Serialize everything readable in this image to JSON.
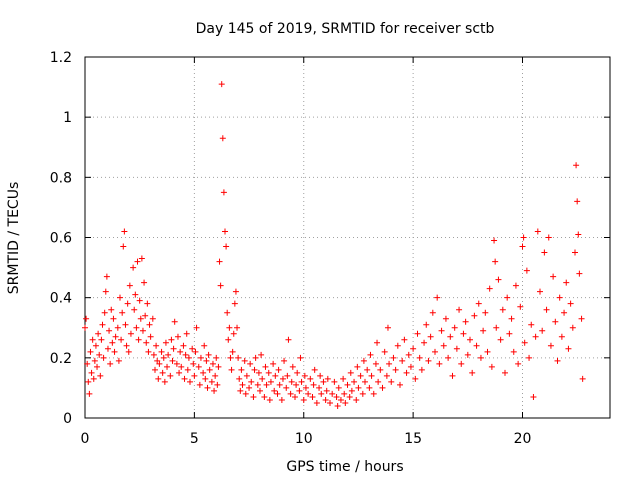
{
  "chart_data": {
    "type": "scatter",
    "title": "Day 145 of 2019, SRMTID for receiver sctb",
    "xlabel": "GPS time / hours",
    "ylabel": "SRMTID / TECUs",
    "xlim": [
      0,
      24
    ],
    "ylim": [
      0,
      1.2
    ],
    "xticks": [
      0,
      5,
      10,
      15,
      20
    ],
    "xtick_labels": [
      "0",
      "5",
      "10",
      "15",
      "20"
    ],
    "yticks": [
      0,
      0.2,
      0.4,
      0.6,
      0.8,
      1.0,
      1.2
    ],
    "ytick_labels": [
      "0",
      "0.2",
      "0.4",
      "0.6",
      "0.8",
      "1",
      "1.2"
    ],
    "grid": true,
    "marker": "+",
    "series": [
      {
        "name": "SRMTID",
        "color": "#ff0000",
        "points": [
          [
            0.0,
            0.3
          ],
          [
            0.05,
            0.33
          ],
          [
            0.1,
            0.18
          ],
          [
            0.15,
            0.12
          ],
          [
            0.2,
            0.08
          ],
          [
            0.25,
            0.22
          ],
          [
            0.3,
            0.15
          ],
          [
            0.35,
            0.26
          ],
          [
            0.4,
            0.13
          ],
          [
            0.45,
            0.19
          ],
          [
            0.5,
            0.24
          ],
          [
            0.55,
            0.17
          ],
          [
            0.6,
            0.28
          ],
          [
            0.65,
            0.21
          ],
          [
            0.7,
            0.14
          ],
          [
            0.75,
            0.26
          ],
          [
            0.8,
            0.31
          ],
          [
            0.85,
            0.2
          ],
          [
            0.9,
            0.35
          ],
          [
            0.95,
            0.42
          ],
          [
            1.0,
            0.47
          ],
          [
            1.05,
            0.23
          ],
          [
            1.1,
            0.29
          ],
          [
            1.15,
            0.18
          ],
          [
            1.2,
            0.36
          ],
          [
            1.25,
            0.25
          ],
          [
            1.3,
            0.33
          ],
          [
            1.35,
            0.22
          ],
          [
            1.4,
            0.27
          ],
          [
            1.5,
            0.3
          ],
          [
            1.55,
            0.19
          ],
          [
            1.6,
            0.4
          ],
          [
            1.65,
            0.26
          ],
          [
            1.7,
            0.35
          ],
          [
            1.75,
            0.57
          ],
          [
            1.8,
            0.62
          ],
          [
            1.85,
            0.31
          ],
          [
            1.9,
            0.24
          ],
          [
            1.95,
            0.38
          ],
          [
            2.0,
            0.22
          ],
          [
            2.05,
            0.44
          ],
          [
            2.1,
            0.28
          ],
          [
            2.2,
            0.5
          ],
          [
            2.25,
            0.36
          ],
          [
            2.3,
            0.41
          ],
          [
            2.35,
            0.3
          ],
          [
            2.4,
            0.52
          ],
          [
            2.45,
            0.26
          ],
          [
            2.5,
            0.39
          ],
          [
            2.55,
            0.33
          ],
          [
            2.6,
            0.53
          ],
          [
            2.65,
            0.29
          ],
          [
            2.7,
            0.45
          ],
          [
            2.75,
            0.34
          ],
          [
            2.8,
            0.25
          ],
          [
            2.85,
            0.38
          ],
          [
            2.9,
            0.22
          ],
          [
            2.95,
            0.31
          ],
          [
            3.0,
            0.27
          ],
          [
            3.1,
            0.33
          ],
          [
            3.15,
            0.21
          ],
          [
            3.2,
            0.16
          ],
          [
            3.25,
            0.24
          ],
          [
            3.3,
            0.19
          ],
          [
            3.35,
            0.13
          ],
          [
            3.4,
            0.18
          ],
          [
            3.5,
            0.22
          ],
          [
            3.55,
            0.15
          ],
          [
            3.6,
            0.2
          ],
          [
            3.65,
            0.12
          ],
          [
            3.7,
            0.25
          ],
          [
            3.75,
            0.17
          ],
          [
            3.8,
            0.21
          ],
          [
            3.9,
            0.14
          ],
          [
            3.95,
            0.26
          ],
          [
            4.0,
            0.19
          ],
          [
            4.05,
            0.23
          ],
          [
            4.1,
            0.32
          ],
          [
            4.2,
            0.18
          ],
          [
            4.25,
            0.27
          ],
          [
            4.3,
            0.15
          ],
          [
            4.35,
            0.22
          ],
          [
            4.4,
            0.17
          ],
          [
            4.5,
            0.24
          ],
          [
            4.55,
            0.13
          ],
          [
            4.6,
            0.21
          ],
          [
            4.65,
            0.28
          ],
          [
            4.7,
            0.16
          ],
          [
            4.75,
            0.2
          ],
          [
            4.8,
            0.12
          ],
          [
            4.9,
            0.23
          ],
          [
            4.95,
            0.18
          ],
          [
            5.0,
            0.14
          ],
          [
            5.05,
            0.22
          ],
          [
            5.1,
            0.3
          ],
          [
            5.2,
            0.17
          ],
          [
            5.25,
            0.11
          ],
          [
            5.3,
            0.2
          ],
          [
            5.4,
            0.15
          ],
          [
            5.45,
            0.24
          ],
          [
            5.5,
            0.13
          ],
          [
            5.55,
            0.19
          ],
          [
            5.6,
            0.1
          ],
          [
            5.65,
            0.21
          ],
          [
            5.7,
            0.16
          ],
          [
            5.8,
            0.12
          ],
          [
            5.85,
            0.18
          ],
          [
            5.9,
            0.09
          ],
          [
            5.95,
            0.14
          ],
          [
            6.0,
            0.2
          ],
          [
            6.05,
            0.11
          ],
          [
            6.1,
            0.17
          ],
          [
            6.15,
            0.52
          ],
          [
            6.2,
            0.44
          ],
          [
            6.25,
            1.11
          ],
          [
            6.3,
            0.93
          ],
          [
            6.35,
            0.75
          ],
          [
            6.4,
            0.62
          ],
          [
            6.45,
            0.57
          ],
          [
            6.5,
            0.35
          ],
          [
            6.55,
            0.26
          ],
          [
            6.6,
            0.3
          ],
          [
            6.65,
            0.2
          ],
          [
            6.7,
            0.16
          ],
          [
            6.75,
            0.22
          ],
          [
            6.8,
            0.28
          ],
          [
            6.85,
            0.38
          ],
          [
            6.9,
            0.42
          ],
          [
            6.95,
            0.3
          ],
          [
            7.0,
            0.2
          ],
          [
            7.05,
            0.13
          ],
          [
            7.1,
            0.09
          ],
          [
            7.15,
            0.16
          ],
          [
            7.2,
            0.11
          ],
          [
            7.3,
            0.19
          ],
          [
            7.35,
            0.08
          ],
          [
            7.4,
            0.14
          ],
          [
            7.5,
            0.1
          ],
          [
            7.55,
            0.18
          ],
          [
            7.6,
            0.12
          ],
          [
            7.7,
            0.07
          ],
          [
            7.75,
            0.16
          ],
          [
            7.8,
            0.2
          ],
          [
            7.9,
            0.11
          ],
          [
            7.95,
            0.15
          ],
          [
            8.0,
            0.09
          ],
          [
            8.05,
            0.21
          ],
          [
            8.1,
            0.13
          ],
          [
            8.2,
            0.07
          ],
          [
            8.25,
            0.17
          ],
          [
            8.3,
            0.11
          ],
          [
            8.4,
            0.15
          ],
          [
            8.45,
            0.06
          ],
          [
            8.5,
            0.12
          ],
          [
            8.6,
            0.18
          ],
          [
            8.65,
            0.09
          ],
          [
            8.7,
            0.14
          ],
          [
            8.8,
            0.08
          ],
          [
            8.85,
            0.16
          ],
          [
            8.9,
            0.11
          ],
          [
            9.0,
            0.06
          ],
          [
            9.05,
            0.13
          ],
          [
            9.1,
            0.19
          ],
          [
            9.2,
            0.1
          ],
          [
            9.25,
            0.14
          ],
          [
            9.3,
            0.26
          ],
          [
            9.4,
            0.08
          ],
          [
            9.45,
            0.12
          ],
          [
            9.5,
            0.17
          ],
          [
            9.6,
            0.07
          ],
          [
            9.65,
            0.11
          ],
          [
            9.7,
            0.15
          ],
          [
            9.8,
            0.09
          ],
          [
            9.85,
            0.2
          ],
          [
            9.9,
            0.12
          ],
          [
            10.0,
            0.06
          ],
          [
            10.05,
            0.14
          ],
          [
            10.1,
            0.1
          ],
          [
            10.2,
            0.08
          ],
          [
            10.3,
            0.13
          ],
          [
            10.4,
            0.07
          ],
          [
            10.45,
            0.11
          ],
          [
            10.5,
            0.16
          ],
          [
            10.6,
            0.05
          ],
          [
            10.7,
            0.1
          ],
          [
            10.75,
            0.14
          ],
          [
            10.8,
            0.08
          ],
          [
            10.9,
            0.12
          ],
          [
            11.0,
            0.06
          ],
          [
            11.05,
            0.09
          ],
          [
            11.1,
            0.13
          ],
          [
            11.2,
            0.05
          ],
          [
            11.3,
            0.08
          ],
          [
            11.4,
            0.12
          ],
          [
            11.5,
            0.07
          ],
          [
            11.55,
            0.04
          ],
          [
            11.6,
            0.1
          ],
          [
            11.7,
            0.06
          ],
          [
            11.8,
            0.13
          ],
          [
            11.85,
            0.08
          ],
          [
            11.9,
            0.05
          ],
          [
            12.0,
            0.11
          ],
          [
            12.1,
            0.07
          ],
          [
            12.15,
            0.15
          ],
          [
            12.2,
            0.09
          ],
          [
            12.3,
            0.12
          ],
          [
            12.4,
            0.06
          ],
          [
            12.45,
            0.17
          ],
          [
            12.5,
            0.1
          ],
          [
            12.6,
            0.14
          ],
          [
            12.7,
            0.08
          ],
          [
            12.75,
            0.19
          ],
          [
            12.8,
            0.12
          ],
          [
            12.9,
            0.16
          ],
          [
            13.0,
            0.1
          ],
          [
            13.05,
            0.21
          ],
          [
            13.1,
            0.14
          ],
          [
            13.2,
            0.08
          ],
          [
            13.3,
            0.18
          ],
          [
            13.35,
            0.25
          ],
          [
            13.4,
            0.12
          ],
          [
            13.5,
            0.16
          ],
          [
            13.6,
            0.1
          ],
          [
            13.7,
            0.22
          ],
          [
            13.8,
            0.14
          ],
          [
            13.85,
            0.3
          ],
          [
            13.9,
            0.18
          ],
          [
            14.0,
            0.12
          ],
          [
            14.1,
            0.2
          ],
          [
            14.2,
            0.16
          ],
          [
            14.3,
            0.24
          ],
          [
            14.4,
            0.11
          ],
          [
            14.5,
            0.19
          ],
          [
            14.6,
            0.26
          ],
          [
            14.7,
            0.15
          ],
          [
            14.8,
            0.21
          ],
          [
            14.9,
            0.17
          ],
          [
            15.0,
            0.23
          ],
          [
            15.1,
            0.13
          ],
          [
            15.2,
            0.28
          ],
          [
            15.3,
            0.2
          ],
          [
            15.4,
            0.16
          ],
          [
            15.5,
            0.25
          ],
          [
            15.6,
            0.31
          ],
          [
            15.7,
            0.19
          ],
          [
            15.8,
            0.27
          ],
          [
            15.9,
            0.35
          ],
          [
            16.0,
            0.22
          ],
          [
            16.1,
            0.4
          ],
          [
            16.2,
            0.18
          ],
          [
            16.3,
            0.29
          ],
          [
            16.4,
            0.24
          ],
          [
            16.5,
            0.33
          ],
          [
            16.6,
            0.2
          ],
          [
            16.7,
            0.27
          ],
          [
            16.8,
            0.14
          ],
          [
            16.9,
            0.3
          ],
          [
            17.0,
            0.23
          ],
          [
            17.1,
            0.36
          ],
          [
            17.2,
            0.18
          ],
          [
            17.3,
            0.28
          ],
          [
            17.4,
            0.32
          ],
          [
            17.5,
            0.21
          ],
          [
            17.6,
            0.26
          ],
          [
            17.7,
            0.15
          ],
          [
            17.8,
            0.34
          ],
          [
            17.9,
            0.24
          ],
          [
            18.0,
            0.38
          ],
          [
            18.1,
            0.2
          ],
          [
            18.2,
            0.29
          ],
          [
            18.3,
            0.35
          ],
          [
            18.4,
            0.22
          ],
          [
            18.5,
            0.43
          ],
          [
            18.6,
            0.17
          ],
          [
            18.7,
            0.59
          ],
          [
            18.75,
            0.52
          ],
          [
            18.8,
            0.3
          ],
          [
            18.9,
            0.46
          ],
          [
            19.0,
            0.26
          ],
          [
            19.1,
            0.36
          ],
          [
            19.2,
            0.15
          ],
          [
            19.3,
            0.4
          ],
          [
            19.4,
            0.28
          ],
          [
            19.5,
            0.33
          ],
          [
            19.6,
            0.22
          ],
          [
            19.7,
            0.44
          ],
          [
            19.8,
            0.18
          ],
          [
            19.9,
            0.37
          ],
          [
            20.0,
            0.57
          ],
          [
            20.05,
            0.6
          ],
          [
            20.1,
            0.25
          ],
          [
            20.2,
            0.49
          ],
          [
            20.3,
            0.2
          ],
          [
            20.4,
            0.31
          ],
          [
            20.5,
            0.07
          ],
          [
            20.6,
            0.27
          ],
          [
            20.7,
            0.62
          ],
          [
            20.8,
            0.42
          ],
          [
            20.9,
            0.29
          ],
          [
            21.0,
            0.55
          ],
          [
            21.1,
            0.36
          ],
          [
            21.2,
            0.6
          ],
          [
            21.3,
            0.24
          ],
          [
            21.4,
            0.47
          ],
          [
            21.5,
            0.32
          ],
          [
            21.6,
            0.19
          ],
          [
            21.7,
            0.4
          ],
          [
            21.8,
            0.27
          ],
          [
            21.9,
            0.35
          ],
          [
            22.0,
            0.45
          ],
          [
            22.1,
            0.23
          ],
          [
            22.2,
            0.38
          ],
          [
            22.3,
            0.3
          ],
          [
            22.4,
            0.55
          ],
          [
            22.45,
            0.84
          ],
          [
            22.5,
            0.72
          ],
          [
            22.55,
            0.61
          ],
          [
            22.6,
            0.48
          ],
          [
            22.7,
            0.33
          ],
          [
            22.75,
            0.13
          ]
        ]
      }
    ]
  }
}
